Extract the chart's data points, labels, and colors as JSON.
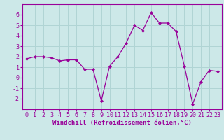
{
  "x": [
    0,
    1,
    2,
    3,
    4,
    5,
    6,
    7,
    8,
    9,
    10,
    11,
    12,
    13,
    14,
    15,
    16,
    17,
    18,
    19,
    20,
    21,
    22,
    23
  ],
  "y": [
    1.8,
    2.0,
    2.0,
    1.9,
    1.6,
    1.7,
    1.7,
    0.8,
    0.8,
    -2.2,
    1.1,
    2.0,
    3.3,
    5.0,
    4.5,
    6.2,
    5.2,
    5.2,
    4.4,
    1.1,
    -2.5,
    -0.4,
    0.7,
    0.6
  ],
  "line_color": "#990099",
  "marker": "D",
  "marker_size": 2.0,
  "bg_color": "#cce8e8",
  "grid_color": "#b0d4d4",
  "xlabel": "Windchill (Refroidissement éolien,°C)",
  "xlabel_fontsize": 6.5,
  "tick_fontsize": 6,
  "ylim": [
    -3,
    7
  ],
  "xlim": [
    -0.5,
    23.5
  ],
  "yticks": [
    -2,
    -1,
    0,
    1,
    2,
    3,
    4,
    5,
    6
  ],
  "xticks": [
    0,
    1,
    2,
    3,
    4,
    5,
    6,
    7,
    8,
    9,
    10,
    11,
    12,
    13,
    14,
    15,
    16,
    17,
    18,
    19,
    20,
    21,
    22,
    23
  ]
}
